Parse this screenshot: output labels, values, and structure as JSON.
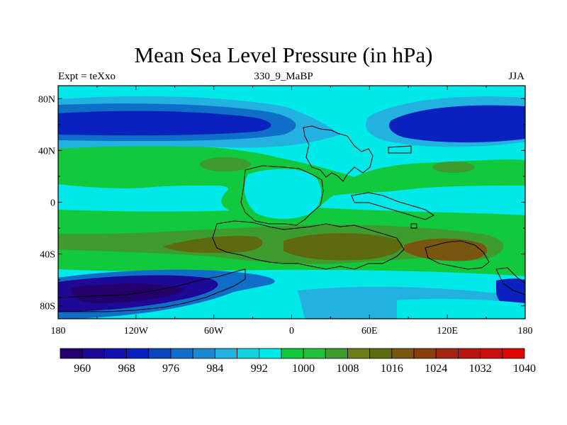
{
  "chart_data": {
    "type": "contour-map",
    "title": "Mean Sea Level Pressure (in hPa)",
    "subtitle_left": "Expt = teXxo",
    "subtitle_center": "330_9_MaBP",
    "subtitle_right": "JJA",
    "x_ticks": [
      "180",
      "120W",
      "60W",
      "0",
      "60E",
      "120E",
      "180"
    ],
    "y_ticks": [
      "80N",
      "40N",
      "0",
      "40S",
      "80S"
    ],
    "xlim": [
      -180,
      180
    ],
    "ylim": [
      -90,
      90
    ],
    "colorbar": {
      "levels": [
        960,
        964,
        968,
        972,
        976,
        980,
        984,
        988,
        992,
        996,
        1000,
        1004,
        1008,
        1012,
        1016,
        1020,
        1024,
        1028,
        1032,
        1036,
        1040
      ],
      "labels": [
        "960",
        "968",
        "976",
        "984",
        "992",
        "1000",
        "1008",
        "1016",
        "1024",
        "1032",
        "1040"
      ],
      "colors": [
        "#24006d",
        "#1e0996",
        "#1212b0",
        "#0a22bd",
        "#0a46bd",
        "#0f6ec7",
        "#1c8ad3",
        "#23b1e0",
        "#14d3e0",
        "#00e8e8",
        "#12c83c",
        "#20c03a",
        "#3e9b2e",
        "#6c7c1a",
        "#5e6a10",
        "#78560f",
        "#8a3e0e",
        "#a2260f",
        "#b41512",
        "#c80e0e",
        "#e00505"
      ]
    }
  }
}
